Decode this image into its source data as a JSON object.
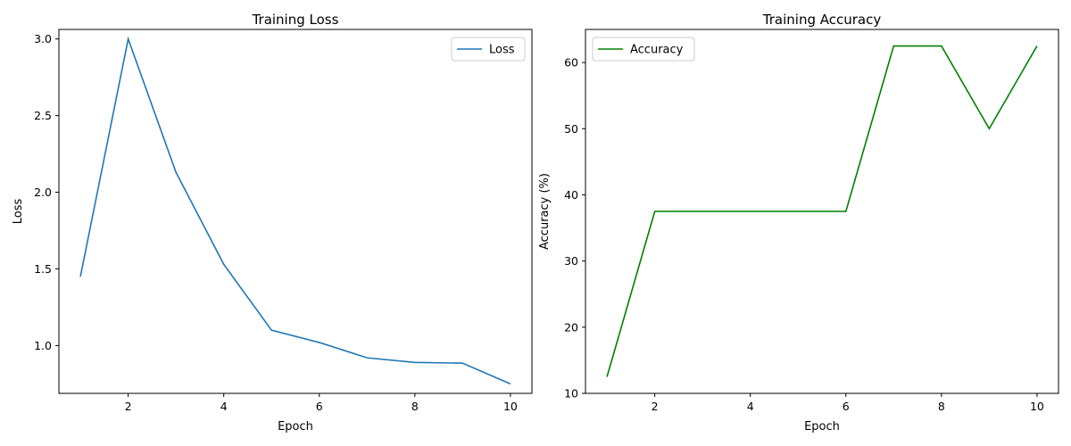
{
  "chart_data": [
    {
      "type": "line",
      "title": "Training Loss",
      "xlabel": "Epoch",
      "ylabel": "Loss",
      "x": [
        1,
        2,
        3,
        4,
        5,
        6,
        7,
        8,
        9,
        10
      ],
      "series": [
        {
          "name": "Loss",
          "color": "#1f77b4",
          "values": [
            1.45,
            3.0,
            2.13,
            1.53,
            1.1,
            1.02,
            0.92,
            0.89,
            0.885,
            0.75
          ]
        }
      ],
      "xlim": [
        0.55,
        10.45
      ],
      "ylim": [
        0.688,
        3.062
      ],
      "xticks": [
        2,
        4,
        6,
        8,
        10
      ],
      "xtick_labels": [
        "2",
        "4",
        "6",
        "8",
        "10"
      ],
      "yticks": [
        1.0,
        1.5,
        2.0,
        2.5,
        3.0
      ],
      "ytick_labels": [
        "1.0",
        "1.5",
        "2.0",
        "2.5",
        "3.0"
      ],
      "grid": false,
      "legend": "upper-right"
    },
    {
      "type": "line",
      "title": "Training Accuracy",
      "xlabel": "Epoch",
      "ylabel": "Accuracy (%)",
      "x": [
        1,
        2,
        3,
        4,
        5,
        6,
        7,
        8,
        9,
        10
      ],
      "series": [
        {
          "name": "Accuracy",
          "color": "#008000",
          "values": [
            12.5,
            37.5,
            37.5,
            37.5,
            37.5,
            37.5,
            62.5,
            62.5,
            50.0,
            62.5
          ]
        }
      ],
      "xlim": [
        0.55,
        10.45
      ],
      "ylim": [
        10.0,
        65.0
      ],
      "xticks": [
        2,
        4,
        6,
        8,
        10
      ],
      "xtick_labels": [
        "2",
        "4",
        "6",
        "8",
        "10"
      ],
      "yticks": [
        10,
        20,
        30,
        40,
        50,
        60
      ],
      "ytick_labels": [
        "10",
        "20",
        "30",
        "40",
        "50",
        "60"
      ],
      "grid": false,
      "legend": "upper-left"
    }
  ]
}
